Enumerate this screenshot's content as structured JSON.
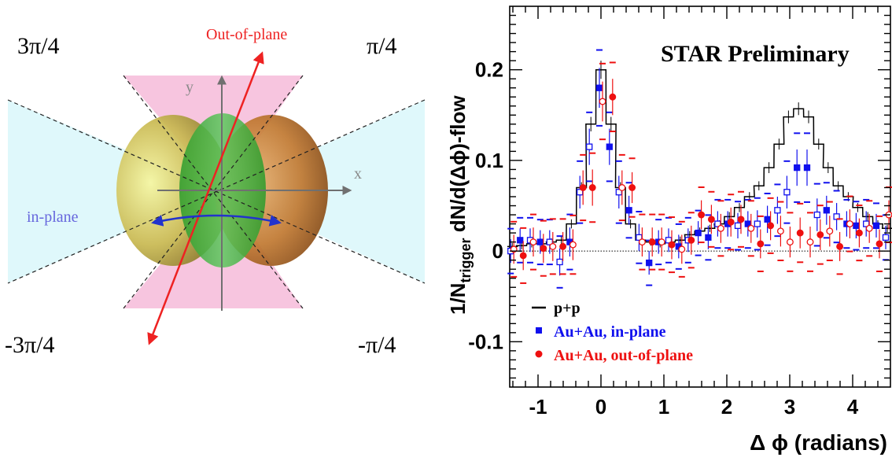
{
  "diagram": {
    "angle_labels": {
      "top_left": "3π/4",
      "top_right": "π/4",
      "bottom_left": "-3π/4",
      "bottom_right": "-π/4"
    },
    "out_of_plane_label": "Out-of-plane",
    "in_plane_label": "in-plane",
    "x_axis_label": "x",
    "y_axis_label": "y",
    "colors": {
      "out_of_plane": "#ee2222",
      "in_plane": "#5555dd",
      "in_plane_wedge": "#dff8fb",
      "out_of_plane_wedge": "#f7c5df"
    }
  },
  "chart_data": {
    "type": "scatter",
    "title": "STAR Preliminary",
    "xlabel": "Δ ϕ (radians)",
    "ylabel_parts": {
      "prefix": "1/N",
      "subscript": "trigger",
      "main": " dN/d(Δϕ)-flow"
    },
    "xlim": [
      -1.45,
      4.6
    ],
    "ylim": [
      -0.15,
      0.27
    ],
    "xticks": [
      "-1",
      "0",
      "1",
      "2",
      "3",
      "4"
    ],
    "xtick_values": [
      -1,
      0,
      1,
      2,
      3,
      4
    ],
    "yticks": [
      "-0.1",
      "0",
      "0.1",
      "0.2"
    ],
    "ytick_values": [
      -0.1,
      0,
      0.1,
      0.2
    ],
    "zero_line": true,
    "legend_position": "bottom-left",
    "series": [
      {
        "name": "p+p",
        "style": "histogram",
        "color": "#000000",
        "bin_width": 0.157,
        "x": [
          -1.41,
          -1.26,
          -1.1,
          -0.94,
          -0.79,
          -0.63,
          -0.47,
          -0.31,
          -0.16,
          0.0,
          0.16,
          0.31,
          0.47,
          0.63,
          0.79,
          0.94,
          1.1,
          1.26,
          1.41,
          1.57,
          1.73,
          1.88,
          2.04,
          2.2,
          2.36,
          2.51,
          2.67,
          2.83,
          2.98,
          3.14,
          3.3,
          3.46,
          3.61,
          3.77,
          3.93,
          4.08,
          4.24,
          4.4,
          4.55
        ],
        "y": [
          0.005,
          0.006,
          0.008,
          0.008,
          0.01,
          0.012,
          0.03,
          0.07,
          0.14,
          0.2,
          0.14,
          0.07,
          0.03,
          0.012,
          0.01,
          0.008,
          0.01,
          0.012,
          0.018,
          0.022,
          0.025,
          0.03,
          0.038,
          0.048,
          0.06,
          0.072,
          0.092,
          0.118,
          0.148,
          0.157,
          0.148,
          0.118,
          0.092,
          0.072,
          0.06,
          0.048,
          0.038,
          0.03,
          0.025
        ],
        "err": [
          0.004,
          0.004,
          0.004,
          0.004,
          0.004,
          0.004,
          0.005,
          0.006,
          0.008,
          0.01,
          0.008,
          0.006,
          0.005,
          0.004,
          0.004,
          0.004,
          0.004,
          0.004,
          0.004,
          0.004,
          0.004,
          0.004,
          0.005,
          0.005,
          0.005,
          0.005,
          0.006,
          0.006,
          0.007,
          0.007,
          0.007,
          0.006,
          0.006,
          0.005,
          0.005,
          0.005,
          0.005,
          0.004,
          0.004
        ]
      },
      {
        "name": "Au+Au, in-plane",
        "style": "squares",
        "color": "#1010ee",
        "x": [
          -1.41,
          -1.26,
          -1.1,
          -0.94,
          -0.79,
          -0.63,
          -0.47,
          -0.31,
          -0.16,
          0.0,
          0.16,
          0.31,
          0.47,
          0.63,
          0.79,
          0.94,
          1.1,
          1.26,
          1.41,
          1.57,
          1.73,
          1.88,
          2.04,
          2.2,
          2.36,
          2.51,
          2.67,
          2.83,
          2.98,
          3.14,
          3.3,
          3.46,
          3.61,
          3.77,
          3.93,
          4.08,
          4.24,
          4.4,
          4.55
        ],
        "y": [
          0.0,
          0.012,
          0.012,
          0.01,
          0.01,
          -0.012,
          0.01,
          0.065,
          0.115,
          0.18,
          0.115,
          0.065,
          0.045,
          0.015,
          -0.013,
          0.01,
          0.012,
          0.005,
          0.012,
          0.02,
          0.015,
          0.03,
          0.03,
          0.028,
          0.03,
          0.03,
          0.035,
          0.045,
          0.065,
          0.092,
          0.092,
          0.04,
          0.045,
          0.038,
          0.03,
          0.028,
          0.03,
          0.028,
          0.015
        ],
        "err": [
          0.013,
          0.013,
          0.013,
          0.013,
          0.013,
          0.015,
          0.016,
          0.018,
          0.02,
          0.022,
          0.02,
          0.018,
          0.016,
          0.015,
          0.013,
          0.013,
          0.013,
          0.013,
          0.013,
          0.013,
          0.013,
          0.014,
          0.014,
          0.014,
          0.014,
          0.015,
          0.015,
          0.015,
          0.018,
          0.02,
          0.02,
          0.018,
          0.016,
          0.015,
          0.014,
          0.014,
          0.014,
          0.013,
          0.013
        ],
        "filled": [
          false,
          true,
          false,
          true,
          false,
          false,
          true,
          false,
          false,
          true,
          true,
          false,
          true,
          false,
          true,
          true,
          false,
          true,
          false,
          true,
          true,
          false,
          true,
          false,
          true,
          false,
          true,
          false,
          false,
          true,
          true,
          false,
          true,
          false,
          true,
          true,
          false,
          true,
          false
        ]
      },
      {
        "name": "Au+Au, out-of-plane",
        "style": "circles",
        "color": "#ee1010",
        "x": [
          -1.41,
          -1.26,
          -1.1,
          -0.94,
          -0.79,
          -0.63,
          -0.47,
          -0.31,
          -0.16,
          0.0,
          0.16,
          0.31,
          0.47,
          0.63,
          0.79,
          0.94,
          1.1,
          1.26,
          1.41,
          1.57,
          1.73,
          1.88,
          2.04,
          2.2,
          2.36,
          2.51,
          2.67,
          2.83,
          2.98,
          3.14,
          3.3,
          3.46,
          3.61,
          3.77,
          3.93,
          4.08,
          4.24,
          4.4,
          4.55
        ],
        "y": [
          0.002,
          -0.005,
          0.01,
          0.003,
          0.005,
          0.005,
          0.007,
          0.07,
          0.07,
          0.165,
          0.17,
          0.07,
          0.07,
          0.01,
          0.01,
          0.01,
          0.007,
          0.002,
          0.012,
          0.04,
          0.035,
          0.025,
          0.032,
          0.035,
          0.025,
          0.008,
          0.028,
          0.022,
          0.01,
          0.02,
          0.01,
          0.018,
          0.022,
          0.005,
          0.03,
          0.02,
          0.025,
          0.008,
          0.04
        ],
        "err": [
          0.016,
          0.016,
          0.016,
          0.016,
          0.016,
          0.016,
          0.017,
          0.019,
          0.02,
          0.022,
          0.02,
          0.019,
          0.017,
          0.016,
          0.016,
          0.016,
          0.016,
          0.016,
          0.016,
          0.016,
          0.016,
          0.016,
          0.016,
          0.016,
          0.016,
          0.016,
          0.016,
          0.017,
          0.017,
          0.017,
          0.017,
          0.017,
          0.017,
          0.016,
          0.016,
          0.016,
          0.016,
          0.016,
          0.016
        ],
        "filled": [
          false,
          true,
          false,
          true,
          false,
          true,
          false,
          true,
          true,
          false,
          true,
          false,
          true,
          false,
          true,
          false,
          true,
          false,
          true,
          true,
          true,
          false,
          true,
          true,
          false,
          true,
          true,
          false,
          false,
          true,
          false,
          true,
          false,
          true,
          false,
          true,
          false,
          true,
          false
        ]
      }
    ]
  }
}
